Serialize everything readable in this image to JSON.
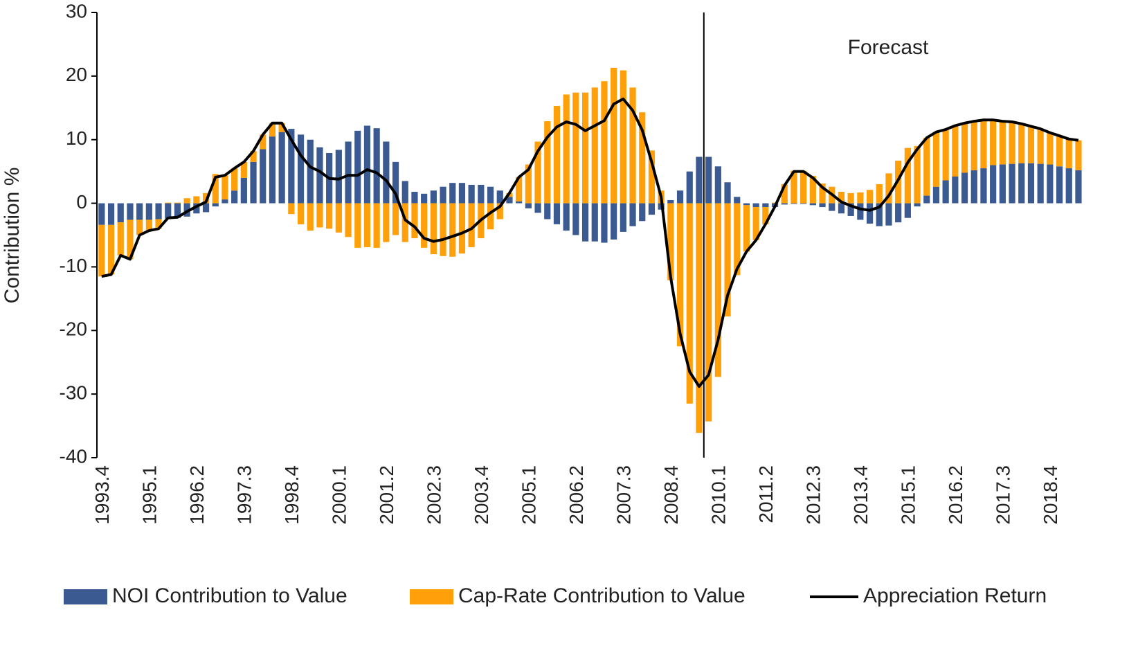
{
  "chart_data": {
    "type": "stacked-bar-line",
    "y_label": "Contribution %",
    "annotation": "Forecast",
    "legend": "bottom",
    "categories": [
      "1993.4",
      null,
      null,
      null,
      null,
      "1995.1",
      null,
      null,
      null,
      null,
      "1996.2",
      null,
      null,
      null,
      null,
      "1997.3",
      null,
      null,
      null,
      null,
      "1998.4",
      null,
      null,
      null,
      null,
      "2000.1",
      null,
      null,
      null,
      null,
      "2001.2",
      null,
      null,
      null,
      null,
      "2002.3",
      null,
      null,
      null,
      null,
      "2003.4",
      null,
      null,
      null,
      null,
      "2005.1",
      null,
      null,
      null,
      null,
      "2006.2",
      null,
      null,
      null,
      null,
      "2007.3",
      null,
      null,
      null,
      null,
      "2008.4",
      null,
      null,
      null,
      null,
      "2010.1",
      null,
      null,
      null,
      null,
      "2011.2",
      null,
      null,
      null,
      null,
      "2012.3",
      null,
      null,
      null,
      null,
      "2013.4",
      null,
      null,
      null,
      null,
      "2015.1",
      null,
      null,
      null,
      null,
      "2016.2",
      null,
      null,
      null,
      null,
      "2017.3",
      null,
      null,
      null,
      null,
      "2018.4",
      null,
      null,
      null
    ],
    "ylim": [
      -40,
      30
    ],
    "yticks": [
      -40,
      -30,
      -20,
      -10,
      0,
      10,
      20,
      30
    ],
    "series": [
      {
        "name": "NOI Contribution to Value",
        "kind": "bar",
        "color": "#3b5a91",
        "values": [
          -3.4,
          -3.4,
          -3.0,
          -2.6,
          -2.6,
          -2.6,
          -2.5,
          -2.4,
          -2.3,
          -2.1,
          -1.6,
          -1.4,
          -0.5,
          0.6,
          2.0,
          4.0,
          6.5,
          8.5,
          10.5,
          11.2,
          11.7,
          10.8,
          10.0,
          8.8,
          7.9,
          8.4,
          9.7,
          11.4,
          12.2,
          11.8,
          9.7,
          6.5,
          3.5,
          1.8,
          1.5,
          2.0,
          2.6,
          3.2,
          3.2,
          2.9,
          2.9,
          2.6,
          2.0,
          1.0,
          0.3,
          -0.8,
          -1.5,
          -2.5,
          -3.3,
          -4.3,
          -5.0,
          -6.0,
          -6.0,
          -6.2,
          -5.7,
          -4.5,
          -3.6,
          -2.8,
          -1.8,
          -1.0,
          0.5,
          2.0,
          5.0,
          7.3,
          7.3,
          5.8,
          3.3,
          1.0,
          -0.3,
          -0.6,
          -0.6,
          -0.6,
          -0.2,
          -0.1,
          -0.1,
          -0.3,
          -0.6,
          -1.2,
          -1.6,
          -2.0,
          -2.6,
          -3.2,
          -3.6,
          -3.5,
          -3.0,
          -2.3,
          -0.5,
          1.2,
          2.6,
          3.6,
          4.2,
          4.8,
          5.2,
          5.5,
          6.0,
          6.1,
          6.2,
          6.3,
          6.3,
          6.2,
          6.1,
          5.8,
          5.5,
          5.2
        ]
      },
      {
        "name": "Cap-Rate Contribution to Value",
        "kind": "bar",
        "color": "#ffa00a",
        "values": [
          -8.1,
          -7.8,
          -5.2,
          -6.2,
          -2.4,
          -1.7,
          -1.5,
          0.1,
          0.1,
          0.8,
          1.1,
          1.6,
          4.6,
          3.8,
          3.5,
          2.5,
          1.7,
          2.3,
          2.1,
          1.4,
          -1.7,
          -3.3,
          -4.3,
          -3.8,
          -4.0,
          -4.6,
          -5.3,
          -7.0,
          -6.9,
          -7.0,
          -6.1,
          -5.0,
          -6.1,
          -5.5,
          -7.0,
          -8.0,
          -8.3,
          -8.4,
          -7.9,
          -6.9,
          -5.5,
          -4.1,
          -2.5,
          0.6,
          3.8,
          6.1,
          9.7,
          12.9,
          15.3,
          17.1,
          17.4,
          17.4,
          18.2,
          19.2,
          21.3,
          20.9,
          18.2,
          14.3,
          8.3,
          2.0,
          -12.1,
          -22.5,
          -31.5,
          -36.1,
          -34.3,
          -27.3,
          -17.8,
          -11.3,
          -7.3,
          -5.2,
          -2.7,
          0.1,
          3.0,
          5.1,
          5.1,
          4.3,
          3.1,
          2.6,
          1.8,
          1.6,
          1.7,
          2.1,
          3.0,
          4.7,
          6.7,
          8.7,
          9.0,
          9.1,
          8.6,
          8.0,
          8.0,
          7.8,
          7.7,
          7.6,
          7.1,
          6.8,
          6.6,
          6.2,
          5.8,
          5.5,
          5.0,
          4.8,
          4.6,
          4.7
        ]
      },
      {
        "name": "Appreciation Return",
        "kind": "line",
        "color": "#000000",
        "values": [
          -11.5,
          -11.2,
          -8.2,
          -8.8,
          -5.0,
          -4.3,
          -4.0,
          -2.3,
          -2.2,
          -1.3,
          -0.5,
          0.2,
          4.1,
          4.4,
          5.5,
          6.5,
          8.2,
          10.8,
          12.6,
          12.6,
          10.0,
          7.5,
          5.7,
          5.0,
          3.9,
          3.8,
          4.4,
          4.4,
          5.3,
          4.8,
          3.6,
          1.5,
          -2.6,
          -3.7,
          -5.5,
          -6.0,
          -5.7,
          -5.2,
          -4.7,
          -4.0,
          -2.6,
          -1.5,
          -0.5,
          1.6,
          4.1,
          5.3,
          8.2,
          10.4,
          12.0,
          12.8,
          12.4,
          11.4,
          12.2,
          13.0,
          15.6,
          16.4,
          14.6,
          11.5,
          6.5,
          1.0,
          -11.6,
          -20.5,
          -26.5,
          -28.8,
          -27.0,
          -21.5,
          -14.5,
          -10.3,
          -7.6,
          -5.8,
          -3.3,
          -0.5,
          2.8,
          5.0,
          5.0,
          4.0,
          2.5,
          1.4,
          0.2,
          -0.4,
          -0.9,
          -1.1,
          -0.6,
          1.2,
          3.7,
          6.4,
          8.5,
          10.3,
          11.2,
          11.6,
          12.2,
          12.6,
          12.9,
          13.1,
          13.1,
          12.9,
          12.8,
          12.5,
          12.1,
          11.7,
          11.1,
          10.6,
          10.1,
          9.9
        ]
      }
    ]
  }
}
